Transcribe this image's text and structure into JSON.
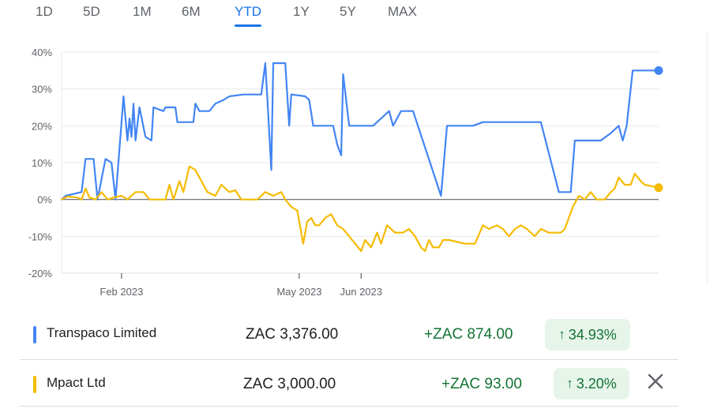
{
  "tabs": [
    {
      "label": "1D",
      "active": false
    },
    {
      "label": "5D",
      "active": false
    },
    {
      "label": "1M",
      "active": false
    },
    {
      "label": "6M",
      "active": false
    },
    {
      "label": "YTD",
      "active": true
    },
    {
      "label": "1Y",
      "active": false
    },
    {
      "label": "5Y",
      "active": false
    },
    {
      "label": "MAX",
      "active": false
    }
  ],
  "chart_data": {
    "type": "line",
    "x_type": "date",
    "y_unit": "%",
    "ylim": [
      -20,
      40
    ],
    "yticks": [
      "40%",
      "30%",
      "20%",
      "10%",
      "0%",
      "-10%",
      "-20%"
    ],
    "xticks": [
      {
        "label": "Feb 2023",
        "date": "2023-02-01"
      },
      {
        "label": "May 2023",
        "date": "2023-05-01"
      },
      {
        "label": "Jun 2023",
        "date": "2023-06-01"
      }
    ],
    "grid": true,
    "series": [
      {
        "name": "Transpaco Limited",
        "color": "#4285f4",
        "points": [
          [
            "2023-01-02",
            0
          ],
          [
            "2023-01-04",
            1
          ],
          [
            "2023-01-12",
            2
          ],
          [
            "2023-01-14",
            11
          ],
          [
            "2023-01-18",
            11
          ],
          [
            "2023-01-20",
            0
          ],
          [
            "2023-01-24",
            11
          ],
          [
            "2023-01-27",
            10
          ],
          [
            "2023-01-29",
            0
          ],
          [
            "2023-02-02",
            28
          ],
          [
            "2023-02-04",
            16
          ],
          [
            "2023-02-05",
            22
          ],
          [
            "2023-02-06",
            17
          ],
          [
            "2023-02-07",
            26
          ],
          [
            "2023-02-08",
            16
          ],
          [
            "2023-02-10",
            25
          ],
          [
            "2023-02-13",
            17
          ],
          [
            "2023-02-16",
            16
          ],
          [
            "2023-02-17",
            25
          ],
          [
            "2023-02-22",
            24
          ],
          [
            "2023-02-23",
            25
          ],
          [
            "2023-02-28",
            25
          ],
          [
            "2023-03-01",
            21
          ],
          [
            "2023-03-09",
            21
          ],
          [
            "2023-03-10",
            26
          ],
          [
            "2023-03-12",
            24
          ],
          [
            "2023-03-17",
            24
          ],
          [
            "2023-03-20",
            26
          ],
          [
            "2023-03-24",
            27
          ],
          [
            "2023-03-27",
            28
          ],
          [
            "2023-04-03",
            28.5
          ],
          [
            "2023-04-12",
            28.5
          ],
          [
            "2023-04-14",
            37
          ],
          [
            "2023-04-15",
            28
          ],
          [
            "2023-04-17",
            8
          ],
          [
            "2023-04-18",
            37
          ],
          [
            "2023-04-24",
            37
          ],
          [
            "2023-04-26",
            20
          ],
          [
            "2023-04-27",
            28.5
          ],
          [
            "2023-05-04",
            28
          ],
          [
            "2023-05-06",
            27
          ],
          [
            "2023-05-08",
            20
          ],
          [
            "2023-05-18",
            20
          ],
          [
            "2023-05-20",
            15
          ],
          [
            "2023-05-22",
            12
          ],
          [
            "2023-05-23",
            34
          ],
          [
            "2023-05-26",
            20
          ],
          [
            "2023-06-07",
            20
          ],
          [
            "2023-06-13",
            23
          ],
          [
            "2023-06-15",
            24
          ],
          [
            "2023-06-17",
            20
          ],
          [
            "2023-06-21",
            24
          ],
          [
            "2023-06-27",
            24
          ],
          [
            "2023-07-11",
            1
          ],
          [
            "2023-07-14",
            20
          ],
          [
            "2023-07-27",
            20
          ],
          [
            "2023-08-01",
            21
          ],
          [
            "2023-08-20",
            21
          ],
          [
            "2023-08-30",
            21
          ],
          [
            "2023-09-08",
            2
          ],
          [
            "2023-09-14",
            2
          ],
          [
            "2023-09-16",
            16
          ],
          [
            "2023-09-29",
            16
          ],
          [
            "2023-10-04",
            18
          ],
          [
            "2023-10-08",
            20
          ],
          [
            "2023-10-10",
            16
          ],
          [
            "2023-10-12",
            20
          ],
          [
            "2023-10-15",
            35
          ],
          [
            "2023-10-28",
            35
          ]
        ]
      },
      {
        "name": "Mpact Ltd",
        "color": "#f5bb00",
        "points": [
          [
            "2023-01-02",
            0
          ],
          [
            "2023-01-05",
            0.8
          ],
          [
            "2023-01-10",
            0.5
          ],
          [
            "2023-01-12",
            0
          ],
          [
            "2023-01-14",
            3
          ],
          [
            "2023-01-16",
            0.5
          ],
          [
            "2023-01-19",
            0
          ],
          [
            "2023-01-22",
            2
          ],
          [
            "2023-01-25",
            0
          ],
          [
            "2023-01-28",
            0.5
          ],
          [
            "2023-02-01",
            1
          ],
          [
            "2023-02-04",
            0
          ],
          [
            "2023-02-08",
            2
          ],
          [
            "2023-02-12",
            2
          ],
          [
            "2023-02-15",
            0
          ],
          [
            "2023-02-23",
            0
          ],
          [
            "2023-02-25",
            4
          ],
          [
            "2023-02-27",
            0
          ],
          [
            "2023-03-02",
            5
          ],
          [
            "2023-03-04",
            2
          ],
          [
            "2023-03-07",
            9
          ],
          [
            "2023-03-10",
            8
          ],
          [
            "2023-03-12",
            6
          ],
          [
            "2023-03-14",
            4
          ],
          [
            "2023-03-16",
            2
          ],
          [
            "2023-03-20",
            1
          ],
          [
            "2023-03-23",
            4
          ],
          [
            "2023-03-27",
            2
          ],
          [
            "2023-03-30",
            2.5
          ],
          [
            "2023-04-02",
            0
          ],
          [
            "2023-04-10",
            0
          ],
          [
            "2023-04-14",
            2
          ],
          [
            "2023-04-18",
            1
          ],
          [
            "2023-04-22",
            2
          ],
          [
            "2023-04-24",
            0
          ],
          [
            "2023-04-27",
            -2
          ],
          [
            "2023-04-30",
            -3
          ],
          [
            "2023-05-03",
            -12
          ],
          [
            "2023-05-05",
            -6
          ],
          [
            "2023-05-07",
            -5
          ],
          [
            "2023-05-09",
            -7
          ],
          [
            "2023-05-11",
            -7
          ],
          [
            "2023-05-14",
            -5
          ],
          [
            "2023-05-17",
            -4
          ],
          [
            "2023-05-20",
            -7
          ],
          [
            "2023-05-23",
            -8
          ],
          [
            "2023-05-26",
            -10
          ],
          [
            "2023-05-29",
            -12
          ],
          [
            "2023-06-01",
            -14
          ],
          [
            "2023-06-03",
            -11
          ],
          [
            "2023-06-06",
            -13
          ],
          [
            "2023-06-09",
            -9
          ],
          [
            "2023-06-11",
            -12
          ],
          [
            "2023-06-14",
            -7
          ],
          [
            "2023-06-18",
            -9
          ],
          [
            "2023-06-22",
            -9
          ],
          [
            "2023-06-25",
            -8
          ],
          [
            "2023-06-28",
            -10
          ],
          [
            "2023-07-01",
            -13
          ],
          [
            "2023-07-03",
            -14
          ],
          [
            "2023-07-05",
            -11
          ],
          [
            "2023-07-07",
            -13
          ],
          [
            "2023-07-10",
            -13
          ],
          [
            "2023-07-12",
            -11
          ],
          [
            "2023-07-15",
            -11
          ],
          [
            "2023-07-23",
            -12
          ],
          [
            "2023-07-28",
            -12
          ],
          [
            "2023-08-01",
            -7
          ],
          [
            "2023-08-04",
            -8
          ],
          [
            "2023-08-08",
            -7
          ],
          [
            "2023-08-11",
            -8
          ],
          [
            "2023-08-14",
            -10
          ],
          [
            "2023-08-17",
            -8
          ],
          [
            "2023-08-20",
            -7
          ],
          [
            "2023-08-23",
            -8
          ],
          [
            "2023-08-27",
            -10
          ],
          [
            "2023-08-30",
            -8
          ],
          [
            "2023-09-03",
            -9
          ],
          [
            "2023-09-09",
            -9
          ],
          [
            "2023-09-11",
            -8
          ],
          [
            "2023-09-15",
            -2
          ],
          [
            "2023-09-18",
            1
          ],
          [
            "2023-09-21",
            0
          ],
          [
            "2023-09-24",
            2
          ],
          [
            "2023-09-27",
            0
          ],
          [
            "2023-10-01",
            0
          ],
          [
            "2023-10-04",
            2
          ],
          [
            "2023-10-06",
            3
          ],
          [
            "2023-10-08",
            6
          ],
          [
            "2023-10-11",
            4
          ],
          [
            "2023-10-14",
            4
          ],
          [
            "2023-10-16",
            7
          ],
          [
            "2023-10-19",
            5
          ],
          [
            "2023-10-21",
            4
          ],
          [
            "2023-10-28",
            3.2
          ]
        ]
      }
    ]
  },
  "legend": [
    {
      "name": "Transpaco Limited",
      "color": "#4285f4",
      "price": "ZAC 3,376.00",
      "change": "+ZAC 874.00",
      "percent": "34.93%",
      "removable": false
    },
    {
      "name": "Mpact Ltd",
      "color": "#f5bb00",
      "price": "ZAC 3,000.00",
      "change": "+ZAC 93.00",
      "percent": "3.20%",
      "removable": true
    }
  ]
}
